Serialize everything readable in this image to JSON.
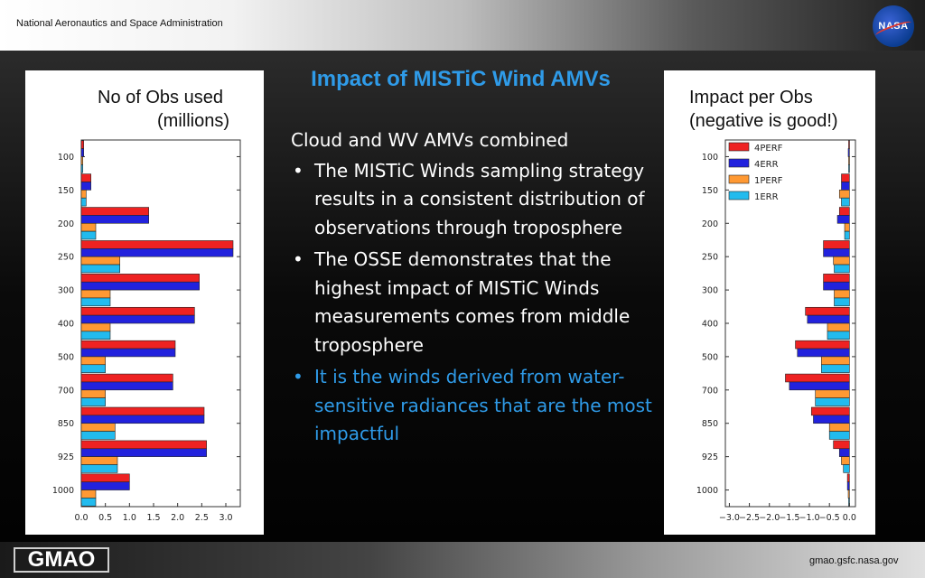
{
  "header": {
    "agency": "National Aeronautics and Space Administration",
    "logo_text": "NASA"
  },
  "footer": {
    "logo_text": "GMAO",
    "site": "gmao.gsfc.nasa.gov"
  },
  "title": "Impact of MISTiC Wind AMVs",
  "text": {
    "heading": "Cloud and WV AMVs combined",
    "bullets": [
      "The MISTiC Winds sampling strategy results in a consistent distribution of observations through troposphere",
      "The OSSE demonstrates that the highest impact of MISTiC Winds measurements comes from middle troposphere",
      "It is the winds derived from water-sensitive radiances that are the most impactful"
    ]
  },
  "colors": {
    "perf4": "#ee2222",
    "err4": "#2222dd",
    "perf1": "#ff9933",
    "err1": "#22bbee",
    "title": "#2f9be8"
  },
  "chart_data": [
    {
      "type": "bar",
      "orientation": "horizontal",
      "title": [
        "No of Obs used",
        "(millions)"
      ],
      "categories": [
        "100",
        "150",
        "200",
        "250",
        "300",
        "400",
        "500",
        "700",
        "850",
        "925",
        "1000"
      ],
      "xlim": [
        0,
        3.3
      ],
      "xticks": [
        "0.0",
        "0.5",
        "1.0",
        "1.5",
        "2.0",
        "2.5",
        "3.0"
      ],
      "xtick_values": [
        0,
        0.5,
        1.0,
        1.5,
        2.0,
        2.5,
        3.0
      ],
      "series": [
        {
          "key": "4PERF",
          "values": [
            0.05,
            0.2,
            1.4,
            3.15,
            2.45,
            2.35,
            1.95,
            1.9,
            2.55,
            2.6,
            1.0
          ]
        },
        {
          "key": "4ERR",
          "values": [
            0.05,
            0.2,
            1.4,
            3.15,
            2.45,
            2.35,
            1.95,
            1.9,
            2.55,
            2.6,
            1.0
          ]
        },
        {
          "key": "1PERF",
          "values": [
            0.03,
            0.1,
            0.3,
            0.8,
            0.6,
            0.6,
            0.5,
            0.5,
            0.7,
            0.75,
            0.3
          ]
        },
        {
          "key": "1ERR",
          "values": [
            0.03,
            0.1,
            0.3,
            0.8,
            0.6,
            0.6,
            0.5,
            0.5,
            0.7,
            0.75,
            0.3
          ]
        }
      ]
    },
    {
      "type": "bar",
      "orientation": "horizontal",
      "title": [
        "Impact per Obs",
        "(negative is good!)"
      ],
      "legend": [
        "4PERF",
        "4ERR",
        "1PERF",
        "1ERR"
      ],
      "legend_position": "top-left",
      "categories": [
        "100",
        "150",
        "200",
        "250",
        "300",
        "400",
        "500",
        "700",
        "850",
        "925",
        "1000"
      ],
      "xlim": [
        -3.1,
        0.15
      ],
      "xticks": [
        "−3.0",
        "−2.5",
        "−2.0",
        "−1.5",
        "−1.0",
        "−0.5",
        "0.0"
      ],
      "xtick_values": [
        -3.0,
        -2.5,
        -2.0,
        -1.5,
        -1.0,
        -0.5,
        0.0
      ],
      "series": [
        {
          "key": "4PERF",
          "values": [
            -0.02,
            -0.2,
            -0.25,
            -0.65,
            -0.65,
            -1.1,
            -1.35,
            -1.6,
            -0.95,
            -0.4,
            -0.05
          ]
        },
        {
          "key": "4ERR",
          "values": [
            -0.03,
            -0.2,
            -0.3,
            -0.65,
            -0.65,
            -1.05,
            -1.3,
            -1.5,
            -0.9,
            -0.25,
            -0.05
          ]
        },
        {
          "key": "1PERF",
          "values": [
            -0.02,
            -0.25,
            -0.12,
            -0.4,
            -0.38,
            -0.55,
            -0.7,
            -0.85,
            -0.5,
            -0.2,
            -0.03
          ]
        },
        {
          "key": "1ERR",
          "values": [
            -0.02,
            -0.2,
            -0.12,
            -0.38,
            -0.38,
            -0.55,
            -0.7,
            -0.85,
            -0.5,
            -0.15,
            -0.02
          ]
        }
      ]
    }
  ]
}
